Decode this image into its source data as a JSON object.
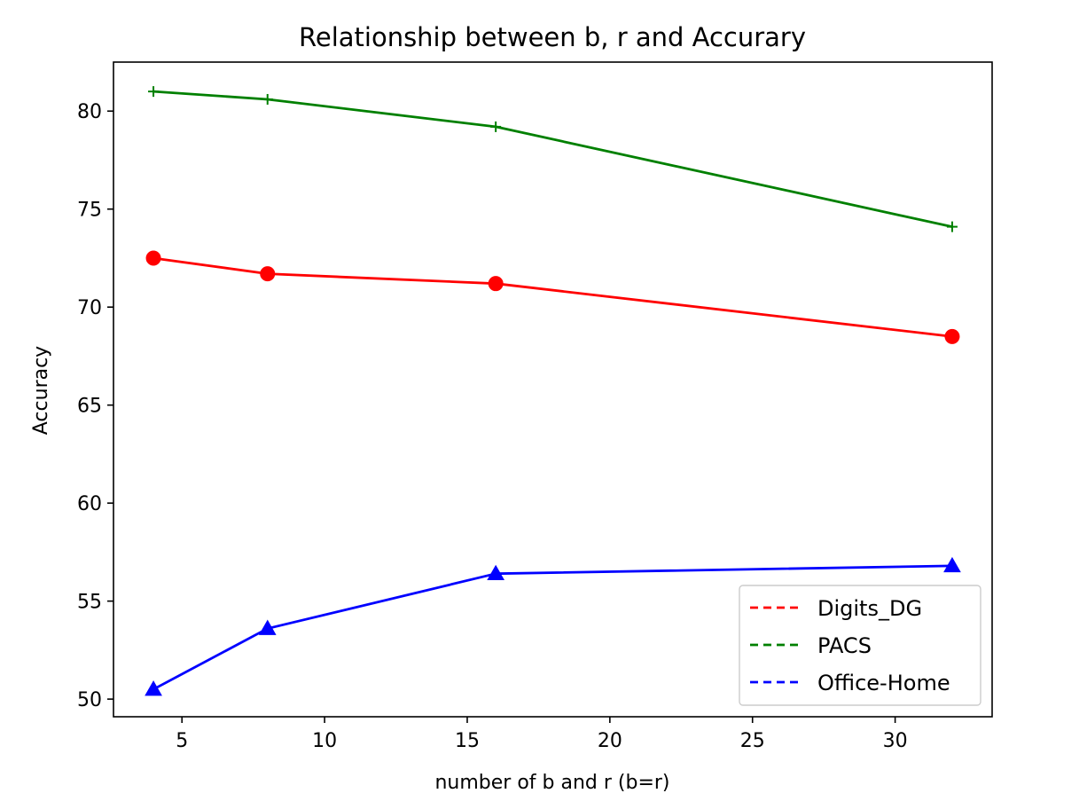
{
  "chart_data": {
    "type": "line",
    "title": "Relationship between b, r and Accurary",
    "xlabel": "number of b and r (b=r)",
    "ylabel": "Accuracy",
    "x": [
      4,
      8,
      16,
      32
    ],
    "xlim": [
      2.6,
      33.4
    ],
    "ylim": [
      49.1,
      82.5
    ],
    "xticks": [
      5,
      10,
      15,
      20,
      25,
      30
    ],
    "yticks": [
      50,
      55,
      60,
      65,
      70,
      75,
      80
    ],
    "grid": false,
    "legend_position": "lower-right",
    "series": [
      {
        "name": "Digits_DG",
        "color": "#ff0000",
        "marker": "circle",
        "values": [
          72.5,
          71.7,
          71.2,
          68.5
        ]
      },
      {
        "name": "PACS",
        "color": "#008000",
        "marker": "plus",
        "values": [
          81.0,
          80.6,
          79.2,
          74.1
        ]
      },
      {
        "name": "Office-Home",
        "color": "#0000ff",
        "marker": "triangle",
        "values": [
          50.5,
          53.6,
          56.4,
          56.8
        ]
      }
    ]
  }
}
